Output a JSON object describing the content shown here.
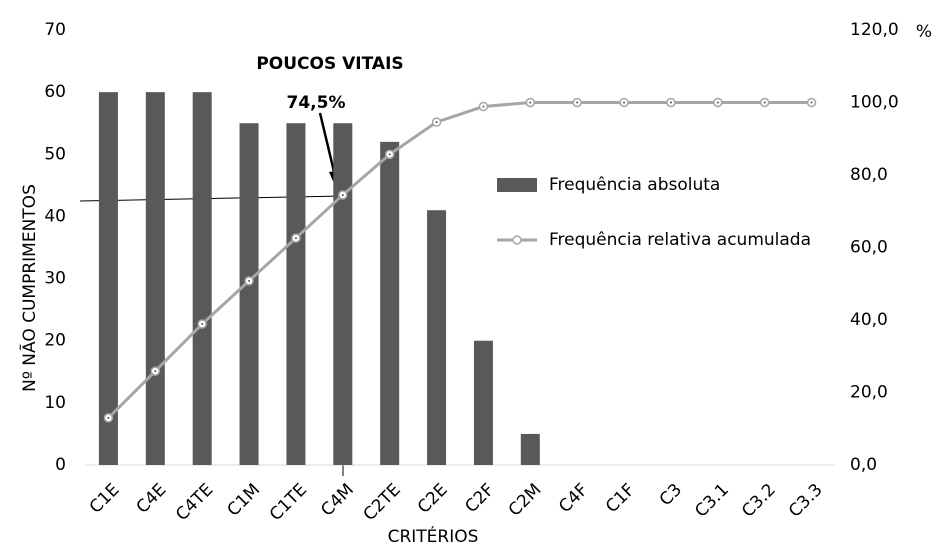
{
  "chart_data": {
    "type": "pareto",
    "annotations": [
      "POUCOS  VITAIS",
      "74,5%"
    ],
    "ylabel": "Nº NÃO CUMPRIMENTOS",
    "xlabel": "CRITÉRIOS",
    "y2label": "%",
    "categories": [
      "C1E",
      "C4E",
      "C4TE",
      "C1M",
      "C1TE",
      "C4M",
      "C2TE",
      "C2E",
      "C2F",
      "C2M",
      "C4F",
      "C1F",
      "C3",
      "C3.1",
      "C3.2",
      "C3.3"
    ],
    "series": [
      {
        "name": "Frequência absoluta",
        "type": "bar",
        "color": "#595959",
        "axis": "y",
        "values": [
          60,
          60,
          60,
          55,
          55,
          55,
          52,
          41,
          20,
          5,
          0,
          0,
          0,
          0,
          0,
          0
        ]
      },
      {
        "name": "Frequência relativa acumulada",
        "type": "line",
        "color": "#a6a6a6",
        "axis": "y2",
        "values": [
          13.0,
          25.9,
          38.9,
          50.8,
          62.6,
          74.5,
          85.7,
          94.6,
          98.9,
          100,
          100,
          100,
          100,
          100,
          100,
          100
        ]
      }
    ],
    "ylim": [
      0,
      70
    ],
    "yticks": [
      0,
      10,
      20,
      30,
      40,
      50,
      60,
      70
    ],
    "y2lim": [
      0,
      120
    ],
    "y2ticks": [
      {
        "value": 0,
        "label": "0,0"
      },
      {
        "value": 20,
        "label": "20,0"
      },
      {
        "value": 40,
        "label": "40,0"
      },
      {
        "value": 60,
        "label": "60,0"
      },
      {
        "value": 80,
        "label": "80,0"
      },
      {
        "value": 100,
        "label": "100,0"
      },
      {
        "value": 120,
        "label": "120,0"
      }
    ],
    "legend": "right"
  }
}
